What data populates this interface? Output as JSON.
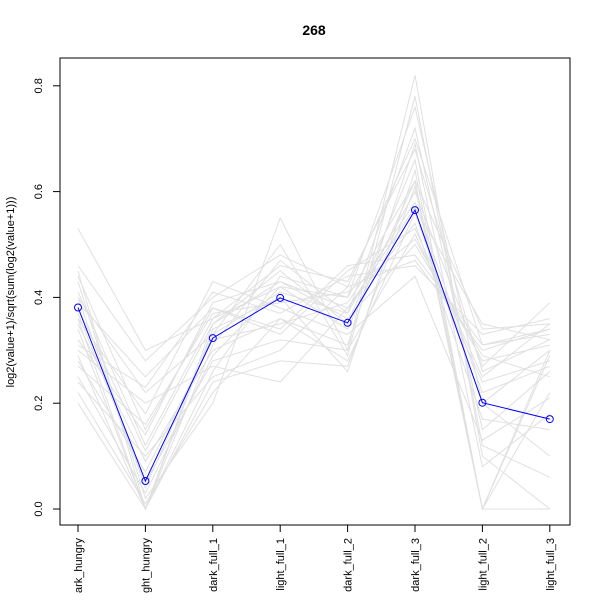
{
  "chart_data": {
    "type": "line",
    "title": "268",
    "xlabel": "",
    "ylabel": "log2(value+1)/sqrt(sum(log2(value+1)))",
    "ylim": [
      0.0,
      0.8
    ],
    "yticks": [
      "0.0",
      "0.2",
      "0.4",
      "0.6",
      "0.8"
    ],
    "ytick_values": [
      0.0,
      0.2,
      0.4,
      0.6,
      0.8
    ],
    "categories": [
      "dark_hungry",
      "light_hungry",
      "dark_full_1",
      "light_full_1",
      "dark_full_2",
      "dark_full_3",
      "light_full_2",
      "light_full_3"
    ],
    "category_labels": [
      "ark_hungry",
      "ght_hungry",
      "dark_full_1",
      "light_full_1",
      "dark_full_2",
      "dark_full_3",
      "light_full_2",
      "light_full_3"
    ],
    "series": [
      {
        "values": [
          0.381,
          0.053,
          0.323,
          0.399,
          0.352,
          0.565,
          0.201,
          0.17
        ],
        "color": "#0000ff",
        "highlight": true
      }
    ],
    "background_series": [
      [
        0.53,
        0.3,
        0.36,
        0.42,
        0.4,
        0.62,
        0.34,
        0.35
      ],
      [
        0.46,
        0.28,
        0.4,
        0.48,
        0.42,
        0.7,
        0.31,
        0.34
      ],
      [
        0.45,
        0.0,
        0.26,
        0.44,
        0.4,
        0.76,
        0.2,
        0.3
      ],
      [
        0.43,
        0.02,
        0.2,
        0.55,
        0.3,
        0.82,
        0.1,
        0.0
      ],
      [
        0.41,
        0.12,
        0.36,
        0.46,
        0.43,
        0.68,
        0.26,
        0.32
      ],
      [
        0.4,
        0.22,
        0.33,
        0.41,
        0.37,
        0.6,
        0.27,
        0.39
      ],
      [
        0.39,
        0.25,
        0.38,
        0.34,
        0.46,
        0.48,
        0.31,
        0.33
      ],
      [
        0.37,
        0.05,
        0.28,
        0.32,
        0.3,
        0.52,
        0.24,
        0.28
      ],
      [
        0.36,
        0.18,
        0.43,
        0.38,
        0.33,
        0.44,
        0.13,
        0.21
      ],
      [
        0.35,
        0.09,
        0.3,
        0.36,
        0.28,
        0.56,
        0.2,
        0.1
      ],
      [
        0.34,
        0.0,
        0.35,
        0.45,
        0.35,
        0.66,
        0.0,
        0.0
      ],
      [
        0.32,
        0.14,
        0.39,
        0.43,
        0.36,
        0.5,
        0.29,
        0.25
      ],
      [
        0.31,
        0.23,
        0.41,
        0.37,
        0.44,
        0.46,
        0.33,
        0.36
      ],
      [
        0.3,
        0.2,
        0.27,
        0.24,
        0.38,
        0.54,
        0.17,
        0.15
      ],
      [
        0.29,
        0.0,
        0.34,
        0.4,
        0.26,
        0.64,
        0.0,
        0.29
      ],
      [
        0.28,
        0.07,
        0.32,
        0.35,
        0.39,
        0.58,
        0.22,
        0.27
      ],
      [
        0.27,
        0.16,
        0.37,
        0.39,
        0.41,
        0.51,
        0.28,
        0.31
      ],
      [
        0.25,
        0.03,
        0.29,
        0.42,
        0.34,
        0.62,
        0.0,
        0.22
      ],
      [
        0.24,
        0.1,
        0.25,
        0.3,
        0.42,
        0.47,
        0.3,
        0.34
      ],
      [
        0.22,
        0.01,
        0.22,
        0.36,
        0.31,
        0.69,
        0.08,
        0.18
      ],
      [
        0.2,
        0.0,
        0.31,
        0.47,
        0.37,
        0.72,
        0.15,
        0.26
      ],
      [
        0.4,
        0.04,
        0.33,
        0.5,
        0.29,
        0.78,
        0.12,
        0.06
      ],
      [
        0.44,
        0.15,
        0.38,
        0.33,
        0.45,
        0.53,
        0.25,
        0.35
      ],
      [
        0.38,
        0.11,
        0.35,
        0.43,
        0.38,
        0.57,
        0.35,
        0.32
      ],
      [
        0.36,
        0.0,
        0.24,
        0.28,
        0.27,
        0.61,
        0.0,
        0.3
      ]
    ],
    "background_color": "#e0e0e0",
    "grid": false,
    "legend": "none"
  }
}
